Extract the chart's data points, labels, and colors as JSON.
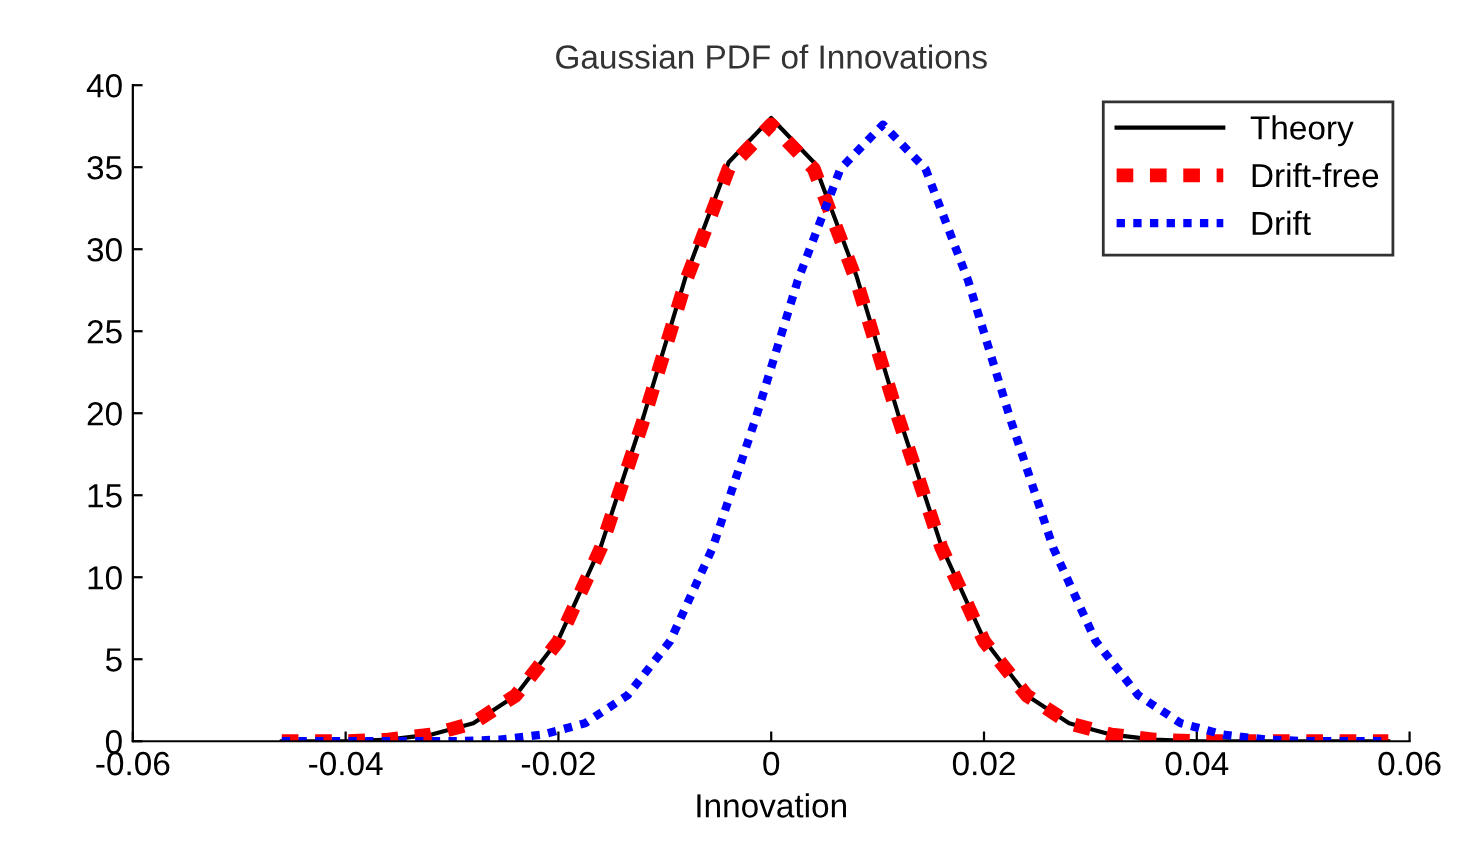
{
  "chart_data": {
    "type": "line",
    "title": "Gaussian PDF of Innovations",
    "xlabel": "Innovation",
    "xlim": [
      -0.06,
      0.06
    ],
    "xticks": [
      -0.06,
      -0.04,
      -0.02,
      0,
      0.02,
      0.04,
      0.06
    ],
    "ylim": [
      0,
      40
    ],
    "yticks": [
      0,
      5,
      10,
      15,
      20,
      25,
      30,
      35,
      40
    ],
    "grid": false,
    "legend": "top right",
    "marker": "none",
    "series": [
      {
        "name": "Theory",
        "color": "#000000",
        "line_style": "solid",
        "x": [
          -0.046,
          -0.04,
          -0.036,
          -0.032,
          -0.028,
          -0.024,
          -0.02,
          -0.016,
          -0.012,
          -0.008,
          -0.004,
          0,
          0.004,
          0.008,
          0.012,
          0.016,
          0.02,
          0.024,
          0.028,
          0.032,
          0.036,
          0.04,
          0.058
        ],
        "values": [
          0,
          0,
          0.1,
          0.4,
          1.1,
          2.8,
          6.2,
          11.9,
          19.8,
          28.4,
          35.3,
          38,
          35.3,
          28.4,
          19.8,
          11.9,
          6.2,
          2.8,
          1.1,
          0.4,
          0.1,
          0,
          0
        ]
      },
      {
        "name": "Drift-free",
        "color": "#ff0000",
        "line_style": "dashed",
        "x": [
          -0.046,
          -0.04,
          -0.036,
          -0.032,
          -0.028,
          -0.024,
          -0.02,
          -0.016,
          -0.012,
          -0.008,
          -0.004,
          0,
          0.004,
          0.008,
          0.012,
          0.016,
          0.02,
          0.024,
          0.028,
          0.032,
          0.036,
          0.04,
          0.058
        ],
        "values": [
          0,
          0,
          0.1,
          0.4,
          1.1,
          2.8,
          6.1,
          11.8,
          19.6,
          28.1,
          34.9,
          37.6,
          34.9,
          28.1,
          19.6,
          11.8,
          6.1,
          2.8,
          1.1,
          0.4,
          0.1,
          0,
          0
        ]
      },
      {
        "name": "Drift",
        "color": "#0000ff",
        "line_style": "dotted",
        "x": [
          -0.046,
          -0.0295,
          -0.0255,
          -0.0215,
          -0.0175,
          -0.0135,
          -0.0095,
          -0.0055,
          -0.0015,
          0.0025,
          0.0065,
          0.0105,
          0.0145,
          0.0185,
          0.0225,
          0.0265,
          0.0305,
          0.0345,
          0.0385,
          0.0425,
          0.0465,
          0.0505,
          0.058
        ],
        "values": [
          0,
          0,
          0.1,
          0.4,
          1.1,
          2.8,
          6.1,
          11.8,
          19.6,
          28.1,
          34.9,
          37.6,
          34.9,
          28.1,
          19.6,
          11.8,
          6.1,
          2.8,
          1.1,
          0.4,
          0.1,
          0,
          0
        ]
      }
    ]
  }
}
